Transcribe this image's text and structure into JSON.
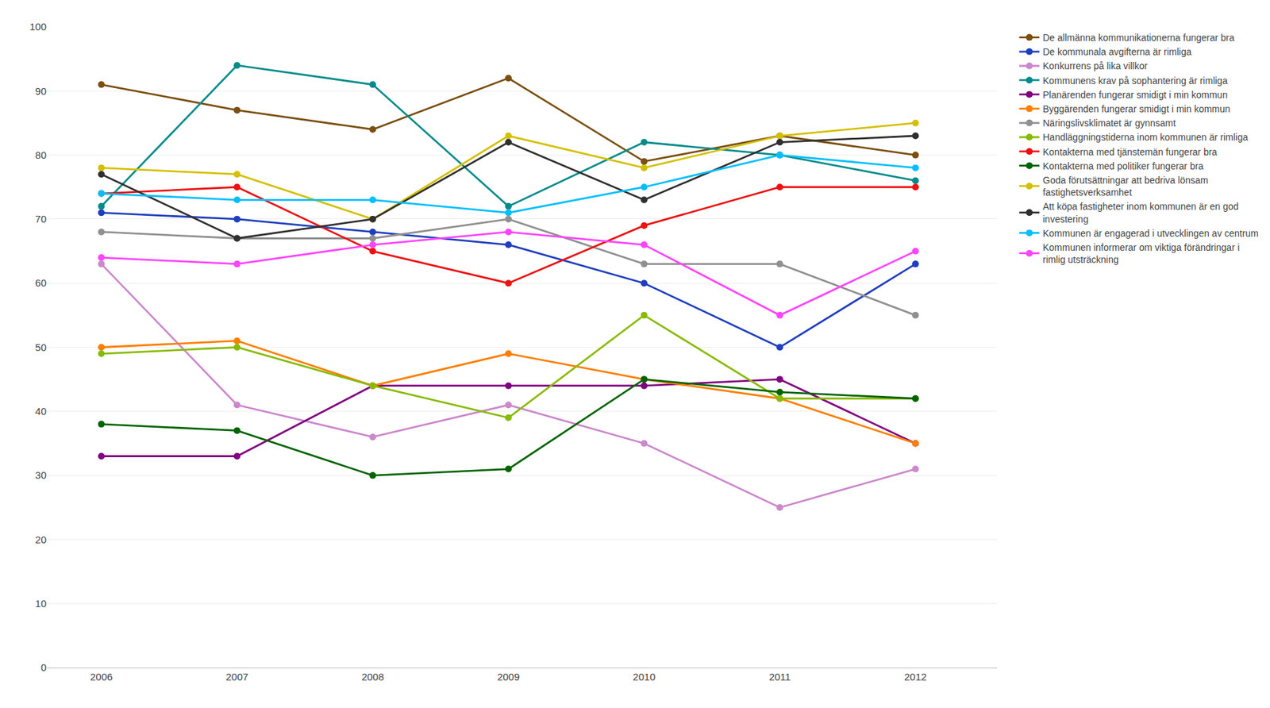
{
  "chart_data": {
    "type": "line",
    "x": [
      2006,
      2007,
      2008,
      2009,
      2010,
      2011,
      2012
    ],
    "series": [
      {
        "name": "De allmänna kommunikationerna fungerar bra",
        "color": "#7B4F10",
        "values": [
          91,
          87,
          84,
          92,
          79,
          83,
          80
        ]
      },
      {
        "name": "De kommunala avgifterna är rimliga",
        "color": "#1F3FBF",
        "values": [
          71,
          70,
          68,
          66,
          60,
          50,
          63
        ]
      },
      {
        "name": "Konkurrens på lika villkor",
        "color": "#CC88CC",
        "values": [
          63,
          41,
          36,
          41,
          35,
          25,
          31
        ]
      },
      {
        "name": "Kommunens krav på sophantering är rimliga",
        "color": "#008B8B",
        "values": [
          72,
          94,
          91,
          72,
          82,
          80,
          76
        ]
      },
      {
        "name": "Planärenden fungerar smidigt i min kommun",
        "color": "#800080",
        "values": [
          33,
          33,
          44,
          44,
          44,
          45,
          35
        ]
      },
      {
        "name": "Byggärenden fungerar smidigt i min kommun",
        "color": "#FF7F00",
        "values": [
          50,
          51,
          44,
          49,
          45,
          42,
          35
        ]
      },
      {
        "name": "Näringslivsklimatet är gynnsamt",
        "color": "#909090",
        "values": [
          68,
          67,
          67,
          70,
          63,
          63,
          55
        ]
      },
      {
        "name": "Handläggningstiderna inom kommunen är rimliga",
        "color": "#88BB00",
        "values": [
          49,
          50,
          44,
          39,
          55,
          42,
          42
        ]
      },
      {
        "name": "Kontakterna med tjänstemän fungerar bra",
        "color": "#EE1111",
        "values": [
          74,
          75,
          65,
          60,
          69,
          75,
          75
        ]
      },
      {
        "name": "Kontakterna med politiker fungerar bra",
        "color": "#006400",
        "values": [
          38,
          37,
          30,
          31,
          45,
          43,
          42
        ]
      },
      {
        "name": "Goda förutsättningar att bedriva lönsam\nfastighetsverksamhet",
        "color": "#D4C000",
        "values": [
          78,
          77,
          70,
          83,
          78,
          83,
          85
        ]
      },
      {
        "name": "Att köpa fastigheter inom kommunen är en god\ninvestering",
        "color": "#303030",
        "values": [
          77,
          67,
          70,
          82,
          73,
          82,
          83
        ]
      },
      {
        "name": "Kommunen är engagerad i utvecklingen av centrum",
        "color": "#00BFFF",
        "values": [
          74,
          73,
          73,
          71,
          75,
          80,
          78
        ]
      },
      {
        "name": "Kommunen informerar om viktiga förändringar i\nrimlig utsträckning",
        "color": "#FF44FF",
        "values": [
          64,
          63,
          66,
          68,
          66,
          55,
          65
        ]
      }
    ],
    "xlim": [
      2005.6,
      2012.6
    ],
    "xticks": [
      2006,
      2007,
      2008,
      2009,
      2010,
      2011,
      2012
    ],
    "ylim": [
      0,
      100
    ],
    "yticks": [
      0,
      10,
      20,
      30,
      40,
      50,
      60,
      70,
      80,
      90,
      100
    ],
    "grid": true,
    "legend": "right",
    "marker": "circle",
    "line_style": "solid"
  }
}
